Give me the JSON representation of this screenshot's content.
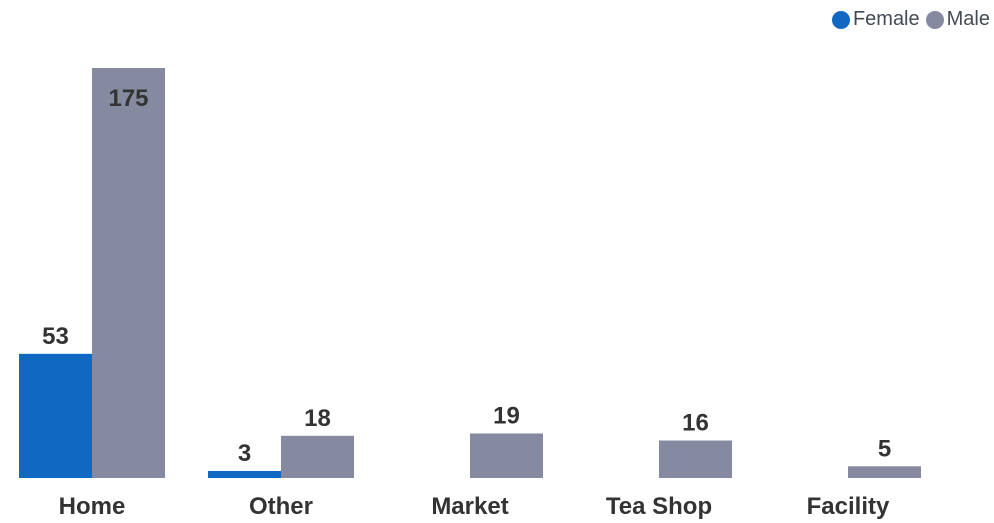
{
  "chart_data": {
    "type": "bar",
    "categories": [
      "Home",
      "Other",
      "Market",
      "Tea Shop",
      "Facility"
    ],
    "series": [
      {
        "name": "Female",
        "color": "#1068c2",
        "values": [
          53,
          3,
          null,
          null,
          null
        ]
      },
      {
        "name": "Male",
        "color": "#858aa0",
        "values": [
          175,
          18,
          19,
          16,
          5
        ]
      }
    ],
    "ylim": [
      0,
      175
    ],
    "grid": false,
    "legend_position": "top-right"
  }
}
